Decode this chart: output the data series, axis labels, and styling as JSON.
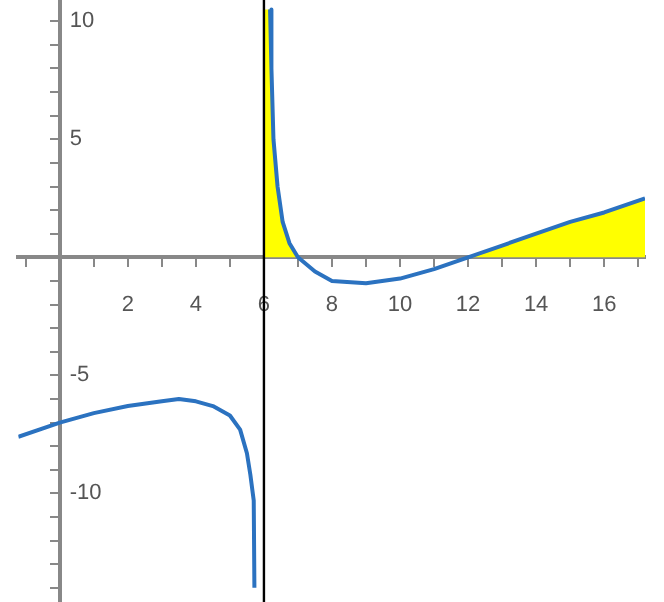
{
  "chart_data": {
    "type": "line",
    "xlim": [
      -1.22,
      17.2
    ],
    "ylim": [
      -14.6,
      10.9
    ],
    "xticks": [
      {
        "value": -1,
        "label": null
      },
      {
        "value": 1,
        "label": null
      },
      2,
      {
        "value": 3,
        "label": null
      },
      4,
      {
        "value": 5,
        "label": null
      },
      6,
      {
        "value": 7,
        "label": null
      },
      8,
      {
        "value": 9,
        "label": null
      },
      10,
      {
        "value": 11,
        "label": null
      },
      12,
      {
        "value": 13,
        "label": null
      },
      14,
      {
        "value": 15,
        "label": null
      },
      16,
      {
        "value": 17,
        "label": null
      }
    ],
    "yticks": [
      {
        "value": -14,
        "label": null
      },
      {
        "value": -13,
        "label": null
      },
      {
        "value": -12,
        "label": null
      },
      {
        "value": -11,
        "label": null
      },
      -10,
      {
        "value": -9,
        "label": null
      },
      {
        "value": -8,
        "label": null
      },
      {
        "value": -7,
        "label": null
      },
      {
        "value": -6,
        "label": null
      },
      -5,
      {
        "value": -4,
        "label": null
      },
      {
        "value": -3,
        "label": null
      },
      {
        "value": -2,
        "label": null
      },
      {
        "value": -1,
        "label": null
      },
      {
        "value": 1,
        "label": null
      },
      {
        "value": 2,
        "label": null
      },
      {
        "value": 3,
        "label": null
      },
      {
        "value": 4,
        "label": null
      },
      5,
      {
        "value": 6,
        "label": null
      },
      {
        "value": 7,
        "label": null
      },
      {
        "value": 8,
        "label": null
      },
      {
        "value": 9,
        "label": null
      },
      10
    ],
    "grid": false,
    "legend": false,
    "marker": "none",
    "line_style": "solid",
    "ref_lines": [
      {
        "axis": "x",
        "value": 6,
        "color": "#000000"
      }
    ],
    "series": [
      {
        "type": "area",
        "color": "#ffff00",
        "x": [
          6,
          6.18,
          6.22,
          6.28,
          6.4,
          6.55,
          6.75,
          7
        ],
        "values": [
          10.5,
          10.5,
          8,
          5,
          3,
          1.5,
          0.6,
          0
        ]
      },
      {
        "type": "area",
        "color": "#ffff00",
        "x": [
          12,
          13,
          14,
          15,
          16,
          17.2
        ],
        "values": [
          0,
          0.5,
          1.0,
          1.5,
          1.9,
          2.5
        ]
      },
      {
        "color": "#2b72c0",
        "x": [
          -1.22,
          0,
          1,
          2,
          3,
          3.5,
          4,
          4.5,
          5,
          5.3,
          5.5,
          5.6,
          5.7,
          5.72
        ],
        "values": [
          -7.6,
          -7.0,
          -6.6,
          -6.3,
          -6.1,
          -6.0,
          -6.1,
          -6.3,
          -6.7,
          -7.3,
          -8.3,
          -9.2,
          -10.3,
          -14.0
        ]
      },
      {
        "color": "#2b72c0",
        "x": [
          6.18,
          6.22,
          6.28,
          6.4,
          6.55,
          6.75,
          7,
          7.5,
          8,
          9,
          10,
          11,
          12,
          13,
          14,
          15,
          16,
          17.2
        ],
        "values": [
          10.5,
          8,
          5,
          3,
          1.5,
          0.6,
          0,
          -0.6,
          -1.0,
          -1.1,
          -0.9,
          -0.5,
          0,
          0.5,
          1.0,
          1.5,
          1.9,
          2.5
        ]
      }
    ]
  }
}
